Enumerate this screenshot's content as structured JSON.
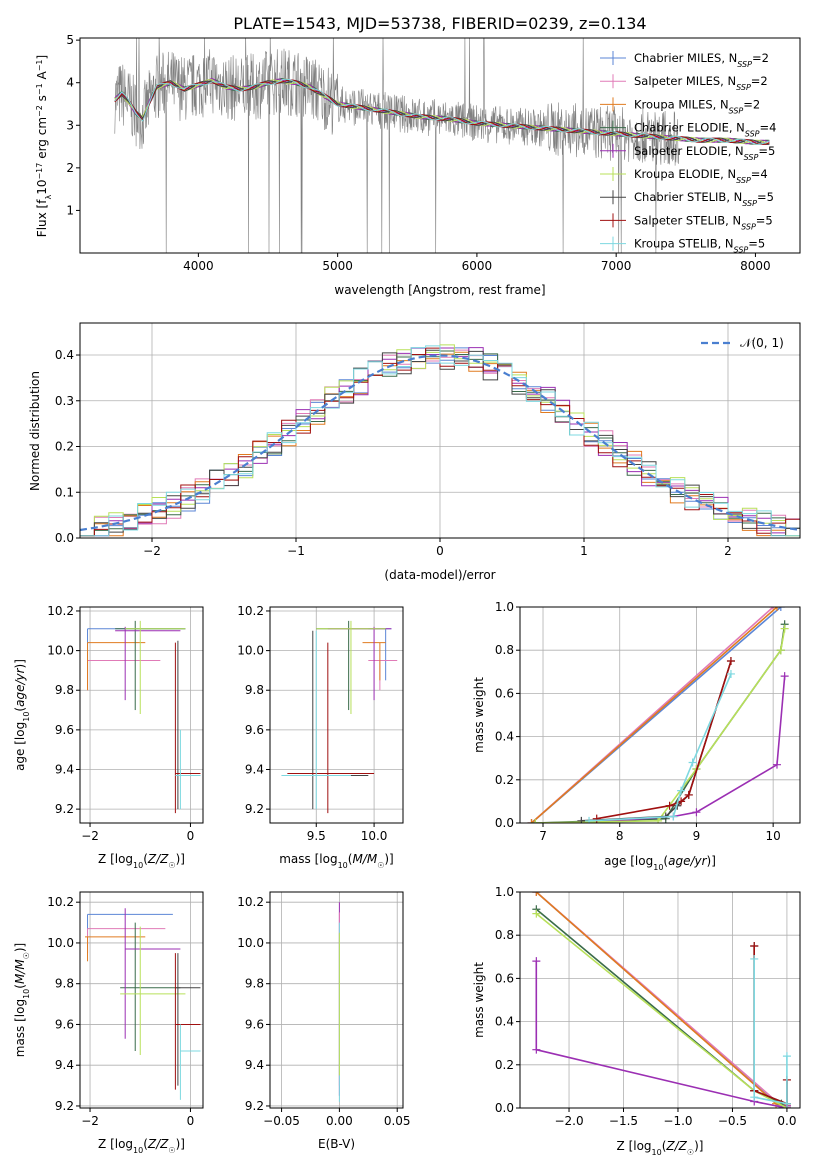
{
  "title": "PLATE=1543, MJD=53738, FIBERID=0239, z=0.134",
  "colors": {
    "chabrier_miles": "#5b86d6",
    "salpeter_miles": "#e07bb7",
    "kroupa_miles": "#e07b20",
    "chabrier_elodie": "#3a6b4a",
    "salpeter_elodie": "#9b2fb3",
    "kroupa_elodie": "#b8e05a",
    "chabrier_stelib": "#444444",
    "salpeter_stelib": "#a01010",
    "kroupa_stelib": "#7dd8e0",
    "data": "#808080",
    "gaussian": "#4a7fd0",
    "grid": "#b0b0b0"
  },
  "legend_spectrum": [
    {
      "pre": "Chabrier MILES, N",
      "sub": "SSP",
      "post": "=2",
      "color": "#5b86d6"
    },
    {
      "pre": "Salpeter MILES, N",
      "sub": "SSP",
      "post": "=2",
      "color": "#e07bb7"
    },
    {
      "pre": "Kroupa MILES, N",
      "sub": "SSP",
      "post": "=2",
      "color": "#e07b20"
    },
    {
      "pre": "Chabrier ELODIE, N",
      "sub": "SSP",
      "post": "=4",
      "color": "#3a6b4a"
    },
    {
      "pre": "Salpeter ELODIE, N",
      "sub": "SSP",
      "post": "=5",
      "color": "#9b2fb3"
    },
    {
      "pre": "Kroupa ELODIE, N",
      "sub": "SSP",
      "post": "=4",
      "color": "#b8e05a"
    },
    {
      "pre": "Chabrier STELIB, N",
      "sub": "SSP",
      "post": "=5",
      "color": "#444444"
    },
    {
      "pre": "Salpeter STELIB, N",
      "sub": "SSP",
      "post": "=5",
      "color": "#a01010"
    },
    {
      "pre": "Kroupa STELIB, N",
      "sub": "SSP",
      "post": "=5",
      "color": "#7dd8e0"
    }
  ],
  "legend_hist": "𝒩(0, 1)",
  "chart_data": [
    {
      "id": "spectrum",
      "type": "line",
      "xlabel": "wavelength [Angstrom, rest frame]",
      "ylabel": "Flux [f_λ 10^-17 erg cm^-2 s^-1 A^-1]",
      "xlim": [
        3150,
        8320
      ],
      "ylim": [
        0,
        5.05
      ],
      "xticks": [
        4000,
        5000,
        6000,
        7000,
        8000
      ],
      "yticks": [
        1,
        2,
        3,
        4,
        5
      ],
      "model_curve": {
        "x": [
          3400,
          3450,
          3500,
          3550,
          3600,
          3650,
          3700,
          3800,
          3900,
          4000,
          4100,
          4200,
          4300,
          4400,
          4500,
          4600,
          4700,
          4800,
          4900,
          5000,
          5200,
          5400,
          5600,
          5800,
          6000,
          6200,
          6400,
          6600,
          6800,
          7000,
          7200,
          7400,
          7600,
          7800,
          8000,
          8100
        ],
        "y": [
          3.6,
          3.75,
          3.55,
          3.3,
          3.15,
          3.55,
          3.9,
          4.0,
          3.85,
          3.95,
          4.05,
          3.9,
          3.85,
          3.9,
          4.0,
          4.05,
          4.0,
          3.9,
          3.7,
          3.5,
          3.4,
          3.3,
          3.2,
          3.15,
          3.05,
          3.0,
          2.95,
          2.9,
          2.85,
          2.8,
          2.75,
          2.7,
          2.65,
          2.65,
          2.6,
          2.6
        ]
      },
      "noise_range": [
        3400,
        7450
      ]
    },
    {
      "id": "histogram",
      "type": "bar",
      "xlabel": "(data-model)/error",
      "ylabel": "Normed distribution",
      "xlim": [
        -2.5,
        2.5
      ],
      "ylim": [
        0,
        0.47
      ],
      "xticks": [
        -2,
        -1,
        0,
        1,
        2
      ],
      "yticks": [
        0.0,
        0.1,
        0.2,
        0.3,
        0.4
      ],
      "bin_edges_start": -2.5,
      "bin_width": 0.1,
      "bins": 50,
      "gaussian": {
        "mean": 0,
        "sigma": 1
      }
    },
    {
      "id": "age_vs_Z",
      "type": "scatter",
      "xlabel": "Z [log10(Z/Z☉)]",
      "ylabel": "age [log10(age/yr)]",
      "xlim": [
        -2.2,
        0.25
      ],
      "ylim": [
        9.13,
        10.22
      ],
      "xticks": [
        -2,
        0
      ],
      "yticks": [
        9.2,
        9.4,
        9.6,
        9.8,
        10.0,
        10.2
      ],
      "points": [
        {
          "x": -2.05,
          "y": 10.11,
          "xe": [
            -2.05,
            -0.1
          ],
          "ye": [
            9.8,
            10.11
          ],
          "c": "#5b86d6"
        },
        {
          "x": -2.05,
          "y": 9.95,
          "xe": [
            -2.05,
            -0.6
          ],
          "ye": [
            9.8,
            9.95
          ],
          "c": "#e07bb7"
        },
        {
          "x": -2.05,
          "y": 10.04,
          "xe": [
            -2.05,
            -0.9
          ],
          "ye": [
            9.8,
            10.04
          ],
          "c": "#e07b20"
        },
        {
          "x": -1.1,
          "y": 10.11,
          "xe": [
            -1.5,
            -0.1
          ],
          "ye": [
            9.7,
            10.15
          ],
          "c": "#3a6b4a"
        },
        {
          "x": -1.3,
          "y": 10.1,
          "xe": [
            -1.5,
            -0.2
          ],
          "ye": [
            9.75,
            10.12
          ],
          "c": "#9b2fb3"
        },
        {
          "x": -1.0,
          "y": 10.11,
          "xe": [
            -1.3,
            -0.1
          ],
          "ye": [
            9.68,
            10.15
          ],
          "c": "#b8e05a"
        },
        {
          "x": -0.25,
          "y": 9.37,
          "xe": [
            -0.3,
            0.2
          ],
          "ye": [
            9.2,
            10.05
          ],
          "c": "#444444"
        },
        {
          "x": -0.3,
          "y": 9.38,
          "xe": [
            -0.3,
            0.2
          ],
          "ye": [
            9.18,
            10.04
          ],
          "c": "#a01010"
        },
        {
          "x": -0.2,
          "y": 9.37,
          "xe": [
            -0.3,
            0.2
          ],
          "ye": [
            9.2,
            9.6
          ],
          "c": "#7dd8e0"
        }
      ]
    },
    {
      "id": "age_vs_mass",
      "type": "scatter",
      "xlabel": "mass [log10(M/M☉)]",
      "ylabel": "",
      "xlim": [
        9.1,
        10.25
      ],
      "ylim": [
        9.13,
        10.22
      ],
      "xticks": [
        9.5,
        10.0
      ],
      "yticks": [
        9.2,
        9.4,
        9.6,
        9.8,
        10.0,
        10.2
      ],
      "points": [
        {
          "x": 10.1,
          "y": 10.11,
          "xe": [
            9.95,
            10.15
          ],
          "ye": [
            9.85,
            10.11
          ],
          "c": "#5b86d6"
        },
        {
          "x": 10.05,
          "y": 9.95,
          "xe": [
            9.95,
            10.2
          ],
          "ye": [
            9.8,
            9.95
          ],
          "c": "#e07bb7"
        },
        {
          "x": 10.05,
          "y": 10.04,
          "xe": [
            9.9,
            10.1
          ],
          "ye": [
            9.85,
            10.04
          ],
          "c": "#e07b20"
        },
        {
          "x": 9.78,
          "y": 10.11,
          "xe": [
            9.5,
            10.1
          ],
          "ye": [
            9.7,
            10.15
          ],
          "c": "#3a6b4a"
        },
        {
          "x": 10.0,
          "y": 10.11,
          "xe": [
            9.6,
            10.15
          ],
          "ye": [
            9.75,
            10.12
          ],
          "c": "#9b2fb3"
        },
        {
          "x": 9.8,
          "y": 10.11,
          "xe": [
            9.5,
            10.1
          ],
          "ye": [
            9.68,
            10.15
          ],
          "c": "#b8e05a"
        },
        {
          "x": 9.47,
          "y": 9.37,
          "xe": [
            9.2,
            9.95
          ],
          "ye": [
            9.2,
            10.1
          ],
          "c": "#444444"
        },
        {
          "x": 9.6,
          "y": 9.38,
          "xe": [
            9.25,
            10.0
          ],
          "ye": [
            9.18,
            10.04
          ],
          "c": "#a01010"
        },
        {
          "x": 9.5,
          "y": 9.37,
          "xe": [
            9.2,
            9.8
          ],
          "ye": [
            9.2,
            10.1
          ],
          "c": "#7dd8e0"
        }
      ]
    },
    {
      "id": "massweight_vs_age",
      "type": "line",
      "xlabel": "age [log10(age/yr)]",
      "ylabel": "mass weight",
      "xlim": [
        6.7,
        10.35
      ],
      "ylim": [
        0,
        1.0
      ],
      "xticks": [
        7,
        8,
        9,
        10
      ],
      "yticks": [
        0.0,
        0.2,
        0.4,
        0.6,
        0.8,
        1.0
      ],
      "series": [
        {
          "x": [
            6.85,
            10.1
          ],
          "y": [
            0.0,
            1.0
          ],
          "c": "#5b86d6"
        },
        {
          "x": [
            6.85,
            10.0
          ],
          "y": [
            0.0,
            1.0
          ],
          "c": "#e07bb7"
        },
        {
          "x": [
            6.85,
            10.05
          ],
          "y": [
            0.0,
            1.0
          ],
          "c": "#e07b20"
        },
        {
          "x": [
            6.9,
            8.6,
            9.0,
            10.1,
            10.15
          ],
          "y": [
            0.0,
            0.02,
            0.25,
            0.8,
            0.92
          ],
          "c": "#3a6b4a"
        },
        {
          "x": [
            7.5,
            8.7,
            9.0,
            10.05,
            10.15
          ],
          "y": [
            0.0,
            0.03,
            0.05,
            0.27,
            0.68
          ],
          "c": "#9b2fb3"
        },
        {
          "x": [
            6.9,
            8.5,
            9.0,
            10.1,
            10.15
          ],
          "y": [
            0.0,
            0.01,
            0.25,
            0.8,
            0.9
          ],
          "c": "#b8e05a"
        },
        {
          "x": [
            7.5,
            8.6,
            8.75,
            8.9,
            9.45
          ],
          "y": [
            0.01,
            0.03,
            0.08,
            0.13,
            0.75
          ],
          "c": "#444444"
        },
        {
          "x": [
            7.7,
            8.65,
            8.8,
            8.9,
            9.45
          ],
          "y": [
            0.02,
            0.08,
            0.1,
            0.13,
            0.75
          ],
          "c": "#a01010"
        },
        {
          "x": [
            7.6,
            8.7,
            8.8,
            8.95,
            9.45
          ],
          "y": [
            0.01,
            0.03,
            0.15,
            0.28,
            0.69
          ],
          "c": "#7dd8e0"
        }
      ]
    },
    {
      "id": "mass_vs_Z",
      "type": "scatter",
      "xlabel": "Z [log10(Z/Z☉)]",
      "ylabel": "mass [log10(M/M☉)]",
      "xlim": [
        -2.2,
        0.25
      ],
      "ylim": [
        9.19,
        10.25
      ],
      "xticks": [
        -2,
        0
      ],
      "yticks": [
        9.2,
        9.4,
        9.6,
        9.8,
        10.0,
        10.2
      ],
      "points": [
        {
          "x": -2.05,
          "y": 10.14,
          "xe": [
            -2.05,
            -0.35
          ],
          "ye": [
            9.95,
            10.14
          ],
          "c": "#5b86d6"
        },
        {
          "x": -2.05,
          "y": 10.07,
          "xe": [
            -2.05,
            -0.5
          ],
          "ye": [
            9.95,
            10.07
          ],
          "c": "#e07bb7"
        },
        {
          "x": -2.05,
          "y": 10.03,
          "xe": [
            -2.1,
            -0.9
          ],
          "ye": [
            9.91,
            10.03
          ],
          "c": "#e07b20"
        },
        {
          "x": -1.1,
          "y": 9.78,
          "xe": [
            -1.4,
            -0.2
          ],
          "ye": [
            9.47,
            10.1
          ],
          "c": "#3a6b4a"
        },
        {
          "x": -1.3,
          "y": 9.97,
          "xe": [
            -1.3,
            -0.2
          ],
          "ye": [
            9.53,
            10.17
          ],
          "c": "#9b2fb3"
        },
        {
          "x": -1.0,
          "y": 9.75,
          "xe": [
            -1.4,
            -0.1
          ],
          "ye": [
            9.45,
            10.08
          ],
          "c": "#b8e05a"
        },
        {
          "x": -0.25,
          "y": 9.78,
          "xe": [
            -0.3,
            0.2
          ],
          "ye": [
            9.3,
            9.95
          ],
          "c": "#444444"
        },
        {
          "x": -0.3,
          "y": 9.6,
          "xe": [
            -0.3,
            0.2
          ],
          "ye": [
            9.28,
            9.95
          ],
          "c": "#a01010"
        },
        {
          "x": -0.2,
          "y": 9.47,
          "xe": [
            -0.2,
            0.2
          ],
          "ye": [
            9.23,
            9.6
          ],
          "c": "#7dd8e0"
        }
      ]
    },
    {
      "id": "mass_vs_EBV",
      "type": "scatter",
      "xlabel": "E(B-V)",
      "ylabel": "",
      "xlim": [
        -0.06,
        0.055
      ],
      "ylim": [
        9.19,
        10.25
      ],
      "xticks": [
        -0.05,
        0.0,
        0.05
      ],
      "yticks": [
        9.2,
        9.4,
        9.6,
        9.8,
        10.0,
        10.2
      ],
      "points": [
        {
          "x": 0.0,
          "y": 10.0,
          "xe": [
            0.0,
            0.0
          ],
          "ye": [
            9.25,
            10.2
          ],
          "c": "#9b2fb3"
        },
        {
          "x": 0.0,
          "y": 9.98,
          "xe": [
            0.0,
            0.0
          ],
          "ye": [
            9.3,
            10.15
          ],
          "c": "#e07bb7"
        },
        {
          "x": 0.0,
          "y": 9.95,
          "xe": [
            0.0,
            0.0
          ],
          "ye": [
            9.22,
            10.1
          ],
          "c": "#7dd8e0"
        },
        {
          "x": 0.0,
          "y": 9.97,
          "xe": [
            0.0,
            0.0
          ],
          "ye": [
            9.35,
            10.05
          ],
          "c": "#b8e05a"
        }
      ]
    },
    {
      "id": "massweight_vs_Z",
      "type": "line",
      "xlabel": "Z [log10(Z/Z☉)]",
      "ylabel": "mass weight",
      "xlim": [
        -2.45,
        0.12
      ],
      "ylim": [
        0,
        1.0
      ],
      "xticks": [
        -2.0,
        -1.5,
        -1.0,
        -0.5,
        0.0
      ],
      "yticks": [
        0.0,
        0.2,
        0.4,
        0.6,
        0.8,
        1.0
      ],
      "series": [
        {
          "x": [
            -2.3,
            -0.05,
            0.0
          ],
          "y": [
            1.0,
            0.0,
            0.0
          ],
          "c": "#5b86d6"
        },
        {
          "x": [
            -2.3,
            -0.05,
            0.0
          ],
          "y": [
            1.0,
            0.01,
            0.0
          ],
          "c": "#e07bb7"
        },
        {
          "x": [
            -2.3,
            -0.1,
            0.0
          ],
          "y": [
            1.0,
            0.02,
            0.01
          ],
          "c": "#e07b20"
        },
        {
          "x": [
            -2.3,
            -0.3,
            -0.05,
            0.0
          ],
          "y": [
            0.92,
            0.08,
            0.02,
            0.0
          ],
          "c": "#3a6b4a"
        },
        {
          "x": [
            -2.3,
            -2.3,
            -0.3,
            0.0,
            0.0
          ],
          "y": [
            0.68,
            0.27,
            0.03,
            0.0,
            0.01
          ],
          "c": "#9b2fb3"
        },
        {
          "x": [
            -2.3,
            -0.3,
            0.0
          ],
          "y": [
            0.9,
            0.08,
            0.0
          ],
          "c": "#b8e05a"
        },
        {
          "x": [
            -0.3,
            -0.3,
            0.0,
            0.0
          ],
          "y": [
            0.75,
            0.08,
            0.02,
            0.13
          ],
          "c": "#444444"
        },
        {
          "x": [
            -0.3,
            -0.3,
            0.0,
            0.0
          ],
          "y": [
            0.75,
            0.08,
            0.02,
            0.13
          ],
          "c": "#a01010"
        },
        {
          "x": [
            -0.3,
            -0.3,
            0.0,
            0.0
          ],
          "y": [
            0.69,
            0.05,
            0.02,
            0.24
          ],
          "c": "#7dd8e0"
        }
      ]
    }
  ]
}
